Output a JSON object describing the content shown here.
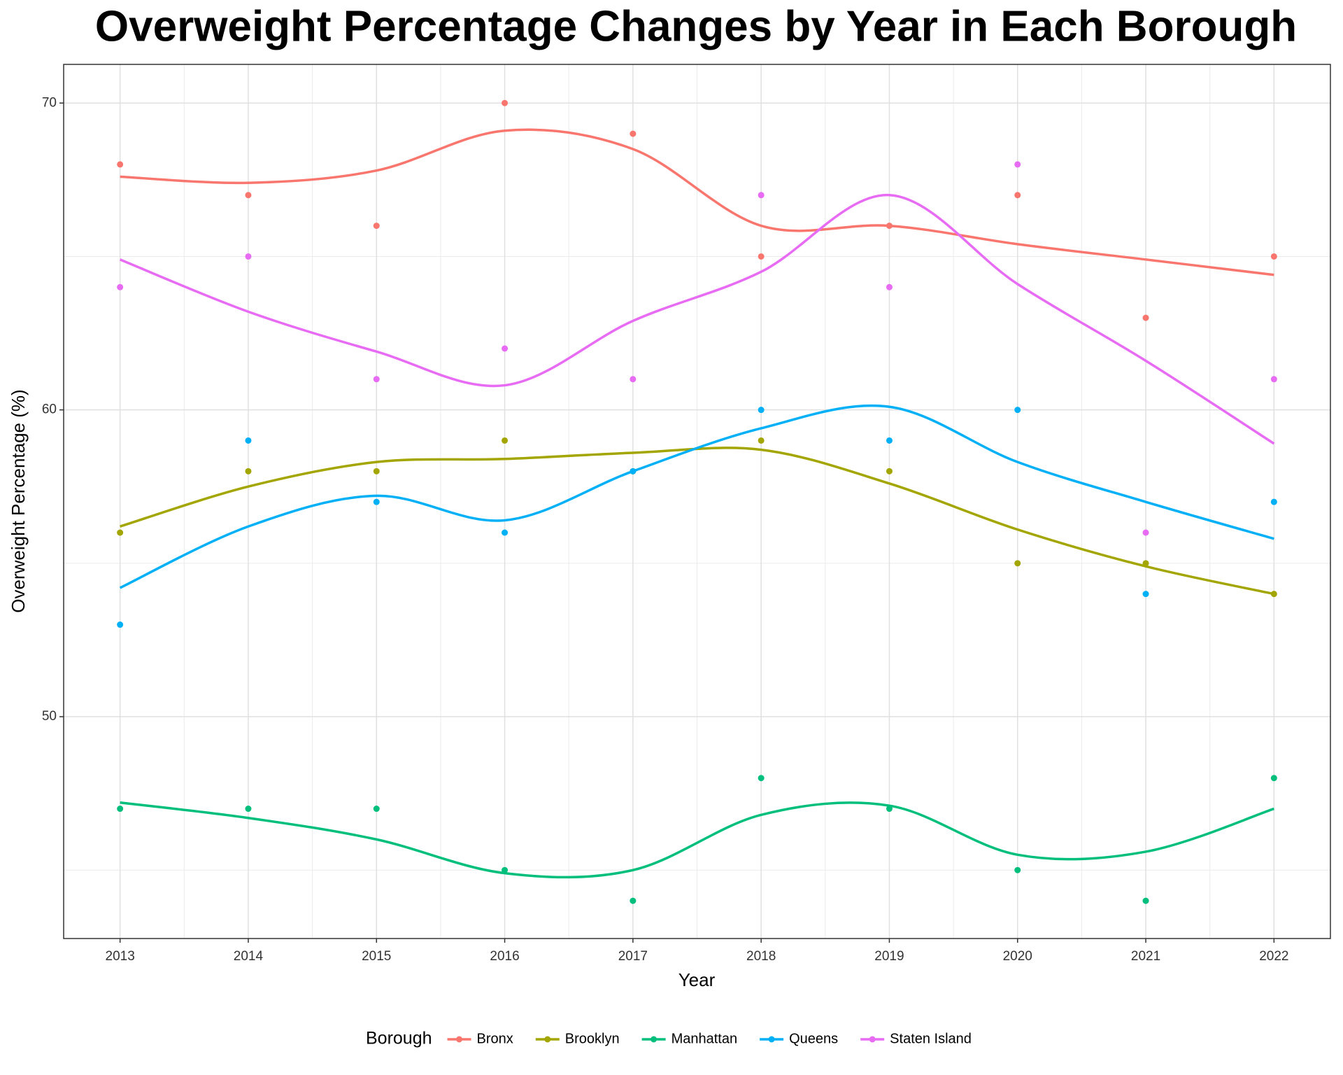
{
  "chart_data": {
    "type": "line",
    "title": "Overweight Percentage Changes by Year in Each Borough",
    "x_label": "Year",
    "y_label": "Overweight Percentage (%)",
    "legend_title": "Borough",
    "legend_position": "bottom",
    "grid": true,
    "x": [
      2013,
      2014,
      2015,
      2016,
      2017,
      2018,
      2019,
      2020,
      2021,
      2022
    ],
    "xlim": [
      2012.56,
      2022.44
    ],
    "xticks": [
      2013,
      2014,
      2015,
      2016,
      2017,
      2018,
      2019,
      2020,
      2021,
      2022
    ],
    "ylim": [
      42.77,
      71.26
    ],
    "yticks": [
      50,
      60,
      70
    ],
    "y_minor_ticks": [
      45,
      55,
      65
    ],
    "series": [
      {
        "name": "Bronx",
        "color": "#F8766D",
        "values": [
          68,
          67,
          66,
          70,
          69,
          65,
          66,
          67,
          63,
          65
        ],
        "smooth": [
          67.6,
          67.4,
          67.8,
          69.1,
          68.5,
          66.0,
          66.0,
          65.4,
          64.9,
          64.4
        ]
      },
      {
        "name": "Brooklyn",
        "color": "#A3A500",
        "values": [
          56,
          58,
          58,
          59,
          58,
          59,
          58,
          55,
          55,
          54
        ],
        "smooth": [
          56.2,
          57.5,
          58.3,
          58.4,
          58.6,
          58.7,
          57.6,
          56.1,
          54.9,
          54.0
        ]
      },
      {
        "name": "Manhattan",
        "color": "#00BF7D",
        "values": [
          47,
          47,
          47,
          45,
          44,
          48,
          47,
          45,
          44,
          48
        ],
        "smooth": [
          47.2,
          46.7,
          46.0,
          44.9,
          45.0,
          46.8,
          47.1,
          45.5,
          45.6,
          47.0
        ]
      },
      {
        "name": "Queens",
        "color": "#00B0F6",
        "values": [
          53,
          59,
          57,
          56,
          58,
          60,
          59,
          60,
          54,
          57
        ],
        "smooth": [
          54.2,
          56.2,
          57.2,
          56.4,
          58.0,
          59.4,
          60.1,
          58.3,
          57.0,
          55.8
        ]
      },
      {
        "name": "Staten Island",
        "color": "#E76BF3",
        "values": [
          64,
          65,
          61,
          62,
          61,
          67,
          64,
          68,
          56,
          61
        ],
        "smooth": [
          64.9,
          63.2,
          61.9,
          60.8,
          62.9,
          64.5,
          67.0,
          64.1,
          61.6,
          58.9
        ]
      }
    ]
  }
}
